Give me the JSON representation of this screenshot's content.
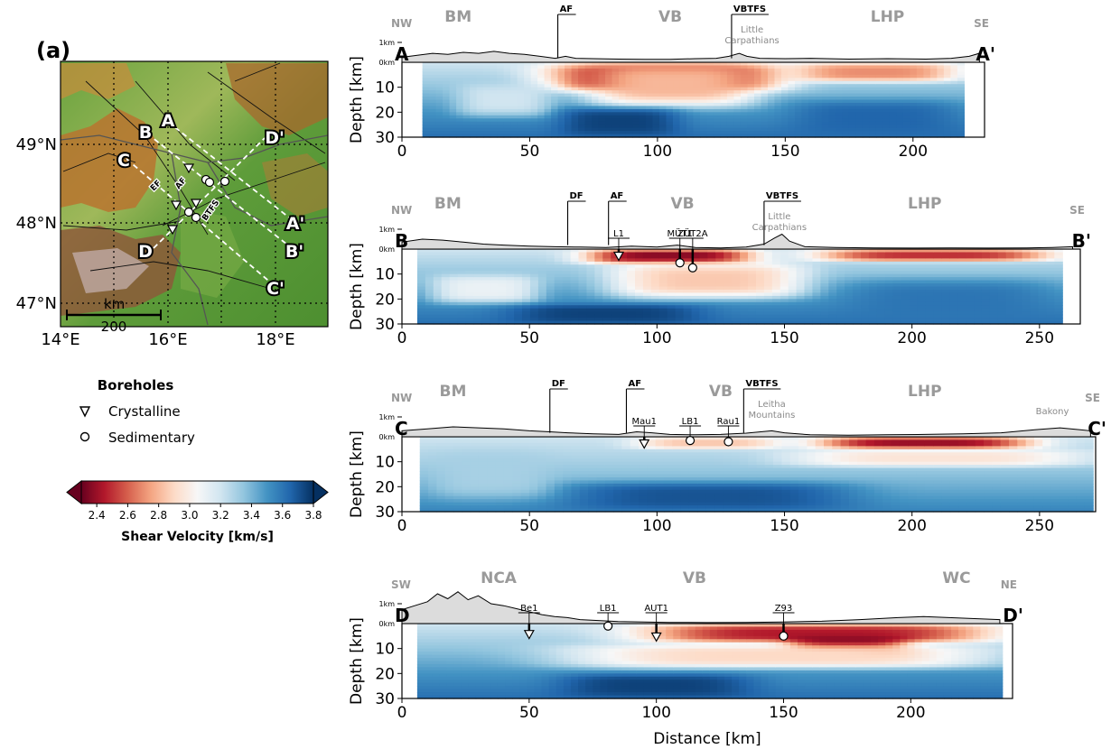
{
  "panel_label": "(a)",
  "colors": {
    "ramp": [
      "#67001f",
      "#b2182b",
      "#d6604d",
      "#f4a582",
      "#fddbc7",
      "#f7f7f7",
      "#d1e5f0",
      "#92c5de",
      "#4393c3",
      "#2166ac",
      "#053061"
    ],
    "topo_fill": "#dcdcdc",
    "map_green": "#5e9c3a",
    "map_brown": "#a8632c"
  },
  "map": {
    "lon_ticks": [
      "14°E",
      "16°E",
      "18°E"
    ],
    "lat_ticks": [
      "49°N",
      "48°N",
      "47°N"
    ],
    "scalebar_label": "km",
    "scalebar_value": "200",
    "profile_labels": {
      "A": "A",
      "B": "B",
      "C": "C",
      "D": "D",
      "A2": "A'",
      "B2": "B'",
      "C2": "C'",
      "D2": "D'"
    },
    "fault_labels": [
      "EF",
      "AF",
      "BTFS"
    ]
  },
  "legend": {
    "title": "Boreholes",
    "items": [
      {
        "label": "Crystalline",
        "marker": "triangle"
      },
      {
        "label": "Sedimentary",
        "marker": "circle"
      }
    ]
  },
  "colorbar": {
    "label": "Shear Velocity [km/s]",
    "min": 2.3,
    "max": 3.8,
    "ticks": [
      "2.4",
      "2.6",
      "2.8",
      "3.0",
      "3.2",
      "3.4",
      "3.6",
      "3.8"
    ]
  },
  "chart_data": [
    {
      "type": "heatmap",
      "profile": "A-A'",
      "start_label": "A",
      "end_label": "A'",
      "dir_left": "NW",
      "dir_right": "SE",
      "xlabel": "",
      "ylabel": "Depth [km]",
      "xlim": [
        0,
        228
      ],
      "ylim": [
        0,
        30
      ],
      "xticks": [
        "0",
        "50",
        "100",
        "150",
        "200"
      ],
      "yticks": [
        "10",
        "20",
        "30"
      ],
      "topo_ticks": [
        "1km",
        "0km"
      ],
      "data_x_range": [
        8,
        220
      ],
      "regions": [
        {
          "label": "BM",
          "x": 22
        },
        {
          "label": "VB",
          "x": 105
        },
        {
          "label": "LHP",
          "x": 190
        }
      ],
      "faults": [
        {
          "label": "AF",
          "x": 61
        },
        {
          "label": "VBTFS",
          "x": 129
        }
      ],
      "geo_labels": [
        {
          "label": "Little Carpathians",
          "x": 137
        }
      ],
      "boreholes": [],
      "topography": [
        [
          0,
          0.25
        ],
        [
          6,
          0.35
        ],
        [
          12,
          0.45
        ],
        [
          18,
          0.4
        ],
        [
          24,
          0.5
        ],
        [
          30,
          0.45
        ],
        [
          36,
          0.55
        ],
        [
          42,
          0.45
        ],
        [
          48,
          0.4
        ],
        [
          54,
          0.3
        ],
        [
          60,
          0.2
        ],
        [
          64,
          0.3
        ],
        [
          68,
          0.2
        ],
        [
          75,
          0.18
        ],
        [
          85,
          0.16
        ],
        [
          95,
          0.15
        ],
        [
          105,
          0.15
        ],
        [
          115,
          0.18
        ],
        [
          123,
          0.2
        ],
        [
          128,
          0.3
        ],
        [
          132,
          0.45
        ],
        [
          135,
          0.3
        ],
        [
          140,
          0.2
        ],
        [
          150,
          0.18
        ],
        [
          160,
          0.2
        ],
        [
          175,
          0.16
        ],
        [
          190,
          0.18
        ],
        [
          205,
          0.16
        ],
        [
          215,
          0.2
        ],
        [
          222,
          0.3
        ],
        [
          226,
          0.45
        ]
      ],
      "velocity_model": {
        "background_depth": [
          [
            0,
            3.2
          ],
          [
            10,
            3.35
          ],
          [
            20,
            3.5
          ],
          [
            30,
            3.62
          ]
        ],
        "anomalies": [
          {
            "x": [
              55,
              150
            ],
            "z": [
              0,
              12
            ],
            "v": 2.35
          },
          {
            "x": [
              72,
              140
            ],
            "z": [
              0,
              18
            ],
            "v": 2.8
          },
          {
            "x": [
              20,
              60
            ],
            "z": [
              8,
              22
            ],
            "v": 3.2
          },
          {
            "x": [
              60,
              110
            ],
            "z": [
              18,
              30
            ],
            "v": 3.75
          },
          {
            "x": [
              150,
              220
            ],
            "z": [
              0,
              8
            ],
            "v": 2.7
          },
          {
            "x": [
              150,
              220
            ],
            "z": [
              15,
              30
            ],
            "v": 3.65
          }
        ]
      }
    },
    {
      "type": "heatmap",
      "profile": "B-B'",
      "start_label": "B",
      "end_label": "B'",
      "dir_left": "NW",
      "dir_right": "SE",
      "xlabel": "",
      "ylabel": "Depth [km]",
      "xlim": [
        0,
        266
      ],
      "ylim": [
        0,
        30
      ],
      "xticks": [
        "0",
        "50",
        "100",
        "150",
        "200",
        "250"
      ],
      "yticks": [
        "10",
        "20",
        "30"
      ],
      "topo_ticks": [
        "1km",
        "0km"
      ],
      "data_x_range": [
        6,
        259
      ],
      "regions": [
        {
          "label": "BM",
          "x": 18
        },
        {
          "label": "VB",
          "x": 110
        },
        {
          "label": "LHP",
          "x": 205
        }
      ],
      "faults": [
        {
          "label": "DF",
          "x": 65
        },
        {
          "label": "AF",
          "x": 81
        },
        {
          "label": "VBTFS",
          "x": 142
        }
      ],
      "geo_labels": [
        {
          "label": "Little Carpathians",
          "x": 148
        }
      ],
      "boreholes": [
        {
          "label": "L1",
          "x": 85,
          "depth": 2,
          "type": "crystalline"
        },
        {
          "label": "MÜT1",
          "x": 109,
          "depth": 5.5,
          "type": "sedimentary"
        },
        {
          "label": "ZÜT2A",
          "x": 114,
          "depth": 7.5,
          "type": "sedimentary"
        }
      ],
      "topography": [
        [
          0,
          0.35
        ],
        [
          8,
          0.5
        ],
        [
          16,
          0.45
        ],
        [
          24,
          0.35
        ],
        [
          32,
          0.25
        ],
        [
          40,
          0.2
        ],
        [
          50,
          0.15
        ],
        [
          60,
          0.12
        ],
        [
          70,
          0.1
        ],
        [
          80,
          0.08
        ],
        [
          90,
          0.15
        ],
        [
          100,
          0.1
        ],
        [
          108,
          0.2
        ],
        [
          115,
          0.08
        ],
        [
          125,
          0.06
        ],
        [
          135,
          0.1
        ],
        [
          142,
          0.25
        ],
        [
          146,
          0.55
        ],
        [
          149,
          0.75
        ],
        [
          152,
          0.4
        ],
        [
          158,
          0.12
        ],
        [
          170,
          0.08
        ],
        [
          185,
          0.06
        ],
        [
          200,
          0.05
        ],
        [
          215,
          0.06
        ],
        [
          230,
          0.05
        ],
        [
          245,
          0.06
        ],
        [
          255,
          0.08
        ],
        [
          263,
          0.12
        ]
      ],
      "velocity_model": {
        "background_depth": [
          [
            0,
            3.2
          ],
          [
            10,
            3.35
          ],
          [
            20,
            3.5
          ],
          [
            30,
            3.62
          ]
        ],
        "anomalies": [
          {
            "x": [
              70,
              140
            ],
            "z": [
              0,
              6
            ],
            "v": 2.35
          },
          {
            "x": [
              80,
              160
            ],
            "z": [
              5,
              20
            ],
            "v": 2.85
          },
          {
            "x": [
              10,
              55
            ],
            "z": [
              10,
              22
            ],
            "v": 3.1
          },
          {
            "x": [
              40,
              120
            ],
            "z": [
              22,
              30
            ],
            "v": 3.75
          },
          {
            "x": [
              160,
              258
            ],
            "z": [
              0,
              5
            ],
            "v": 2.5
          },
          {
            "x": [
              170,
              258
            ],
            "z": [
              12,
              30
            ],
            "v": 3.6
          }
        ]
      }
    },
    {
      "type": "heatmap",
      "profile": "C-C'",
      "start_label": "C",
      "end_label": "C'",
      "dir_left": "NW",
      "dir_right": "SE",
      "xlabel": "",
      "ylabel": "Depth [km]",
      "xlim": [
        0,
        272
      ],
      "ylim": [
        0,
        30
      ],
      "xticks": [
        "0",
        "50",
        "100",
        "150",
        "200",
        "250"
      ],
      "yticks": [
        "10",
        "20",
        "30"
      ],
      "topo_ticks": [
        "1km",
        "0km"
      ],
      "data_x_range": [
        7,
        271
      ],
      "regions": [
        {
          "label": "BM",
          "x": 20
        },
        {
          "label": "VB",
          "x": 125
        },
        {
          "label": "LHP",
          "x": 205
        }
      ],
      "faults": [
        {
          "label": "DF",
          "x": 58
        },
        {
          "label": "AF",
          "x": 88
        },
        {
          "label": "VBTFS",
          "x": 134
        }
      ],
      "geo_labels": [
        {
          "label": "Leitha Mountains",
          "x": 145
        },
        {
          "label": "Bakony",
          "x": 255
        }
      ],
      "boreholes": [
        {
          "label": "Mau1",
          "x": 95,
          "depth": 2,
          "type": "crystalline"
        },
        {
          "label": "LB1",
          "x": 113,
          "depth": 1.5,
          "type": "sedimentary"
        },
        {
          "label": "Rau1",
          "x": 128,
          "depth": 2,
          "type": "sedimentary"
        }
      ],
      "topography": [
        [
          0,
          0.3
        ],
        [
          10,
          0.4
        ],
        [
          20,
          0.5
        ],
        [
          30,
          0.45
        ],
        [
          40,
          0.4
        ],
        [
          50,
          0.3
        ],
        [
          58,
          0.25
        ],
        [
          65,
          0.2
        ],
        [
          75,
          0.15
        ],
        [
          85,
          0.12
        ],
        [
          92,
          0.25
        ],
        [
          98,
          0.2
        ],
        [
          105,
          0.12
        ],
        [
          115,
          0.1
        ],
        [
          125,
          0.12
        ],
        [
          135,
          0.18
        ],
        [
          145,
          0.3
        ],
        [
          150,
          0.2
        ],
        [
          160,
          0.1
        ],
        [
          175,
          0.08
        ],
        [
          190,
          0.1
        ],
        [
          205,
          0.12
        ],
        [
          220,
          0.15
        ],
        [
          235,
          0.2
        ],
        [
          248,
          0.35
        ],
        [
          258,
          0.45
        ],
        [
          266,
          0.35
        ],
        [
          270,
          0.3
        ]
      ],
      "velocity_model": {
        "background_depth": [
          [
            0,
            3.2
          ],
          [
            10,
            3.3
          ],
          [
            20,
            3.42
          ],
          [
            30,
            3.55
          ]
        ],
        "anomalies": [
          {
            "x": [
              90,
              150
            ],
            "z": [
              0,
              5
            ],
            "v": 2.85
          },
          {
            "x": [
              160,
              250
            ],
            "z": [
              0,
              5
            ],
            "v": 2.4
          },
          {
            "x": [
              150,
              270
            ],
            "z": [
              5,
              12
            ],
            "v": 2.95
          },
          {
            "x": [
              60,
              180
            ],
            "z": [
              18,
              30
            ],
            "v": 3.7
          },
          {
            "x": [
              10,
              60
            ],
            "z": [
              5,
              25
            ],
            "v": 3.3
          }
        ]
      }
    },
    {
      "type": "heatmap",
      "profile": "D-D'",
      "start_label": "D",
      "end_label": "D'",
      "dir_left": "SW",
      "dir_right": "NE",
      "xlabel": "Distance [km]",
      "ylabel": "Depth [km]",
      "xlim": [
        0,
        240
      ],
      "ylim": [
        0,
        30
      ],
      "xticks": [
        "0",
        "50",
        "100",
        "150",
        "200"
      ],
      "yticks": [
        "10",
        "20",
        "30"
      ],
      "topo_ticks": [
        "1km",
        "0km"
      ],
      "data_x_range": [
        6,
        236
      ],
      "regions": [
        {
          "label": "NCA",
          "x": 38
        },
        {
          "label": "VB",
          "x": 115
        },
        {
          "label": "WC",
          "x": 218
        }
      ],
      "faults": [],
      "geo_labels": [],
      "boreholes": [
        {
          "label": "Be1",
          "x": 50,
          "depth": 3.5,
          "type": "crystalline"
        },
        {
          "label": "LB1",
          "x": 81,
          "depth": 1,
          "type": "sedimentary"
        },
        {
          "label": "AUT1",
          "x": 100,
          "depth": 4.5,
          "type": "crystalline"
        },
        {
          "label": "Z93",
          "x": 150,
          "depth": 5,
          "type": "sedimentary"
        }
      ],
      "topography": [
        [
          0,
          0.7
        ],
        [
          5,
          0.9
        ],
        [
          10,
          1.1
        ],
        [
          14,
          1.5
        ],
        [
          18,
          1.25
        ],
        [
          22,
          1.6
        ],
        [
          26,
          1.2
        ],
        [
          30,
          1.4
        ],
        [
          35,
          1.0
        ],
        [
          40,
          0.9
        ],
        [
          45,
          0.75
        ],
        [
          50,
          0.6
        ],
        [
          55,
          0.45
        ],
        [
          60,
          0.35
        ],
        [
          65,
          0.3
        ],
        [
          70,
          0.2
        ],
        [
          78,
          0.15
        ],
        [
          85,
          0.1
        ],
        [
          95,
          0.08
        ],
        [
          105,
          0.06
        ],
        [
          120,
          0.05
        ],
        [
          135,
          0.06
        ],
        [
          150,
          0.08
        ],
        [
          165,
          0.12
        ],
        [
          180,
          0.2
        ],
        [
          195,
          0.3
        ],
        [
          205,
          0.35
        ],
        [
          215,
          0.3
        ],
        [
          225,
          0.25
        ],
        [
          235,
          0.2
        ]
      ],
      "velocity_model": {
        "background_depth": [
          [
            0,
            3.2
          ],
          [
            10,
            3.35
          ],
          [
            20,
            3.5
          ],
          [
            30,
            3.62
          ]
        ],
        "anomalies": [
          {
            "x": [
              90,
              236
            ],
            "z": [
              0,
              8
            ],
            "v": 2.45
          },
          {
            "x": [
              150,
              200
            ],
            "z": [
              5,
              14
            ],
            "v": 2.3
          },
          {
            "x": [
              60,
              236
            ],
            "z": [
              8,
              18
            ],
            "v": 2.9
          },
          {
            "x": [
              60,
              140
            ],
            "z": [
              20,
              30
            ],
            "v": 3.75
          }
        ]
      }
    }
  ]
}
